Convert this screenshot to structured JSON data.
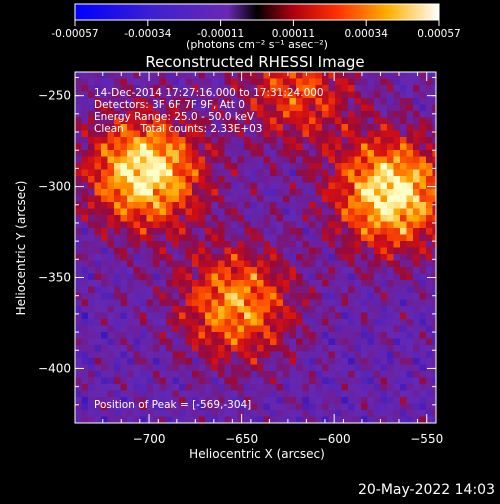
{
  "colorbar": {
    "ticks": [
      "-0.00057",
      "-0.00034",
      "-0.00011",
      "0.00011",
      "0.00034",
      "0.00057"
    ],
    "units": "(photons cm⁻² s⁻¹ asec⁻²)",
    "range": [
      -0.00057,
      0.00057
    ]
  },
  "chart_data": {
    "type": "heatmap",
    "title": "Reconstructed RHESSI Image",
    "xlabel": "Heliocentric X (arcsec)",
    "ylabel": "Heliocentric Y (arcsec)",
    "xlim": [
      -740,
      -545
    ],
    "ylim": [
      -430,
      -237
    ],
    "x_ticks": [
      -700,
      -650,
      -600,
      -550
    ],
    "x_tick_labels": [
      "−700",
      "−650",
      "−600",
      "−550"
    ],
    "y_ticks": [
      -250,
      -300,
      -350,
      -400
    ],
    "y_tick_labels": [
      "−250",
      "−300",
      "−350",
      "−400"
    ],
    "colormap": "red-temperature",
    "colors": [
      "#0000ff",
      "#3010b0",
      "#6a28b4",
      "#d8102a",
      "#ff7000",
      "#ffff80"
    ],
    "annotations": [
      "14-Dec-2014 17:27:16.000 to 17:31:24.000",
      "Detectors: 3F 6F 7F 9F, Att 0",
      "Energy Range: 25.0 - 50.0 keV",
      "Clean     Total counts: 2.33E+03"
    ],
    "peak_label": "Position of Peak = [-569,-304]",
    "peak_position": [
      -569,
      -304
    ],
    "sources": [
      {
        "x": -702,
        "y": -292,
        "amplitude": 1.0
      },
      {
        "x": -569,
        "y": -304,
        "amplitude": 1.0
      },
      {
        "x": -653,
        "y": -365,
        "amplitude": 0.75
      },
      {
        "x": -620,
        "y": -247,
        "amplitude": 0.55
      }
    ]
  },
  "footer": {
    "timestamp": "20-May-2022 14:03"
  }
}
